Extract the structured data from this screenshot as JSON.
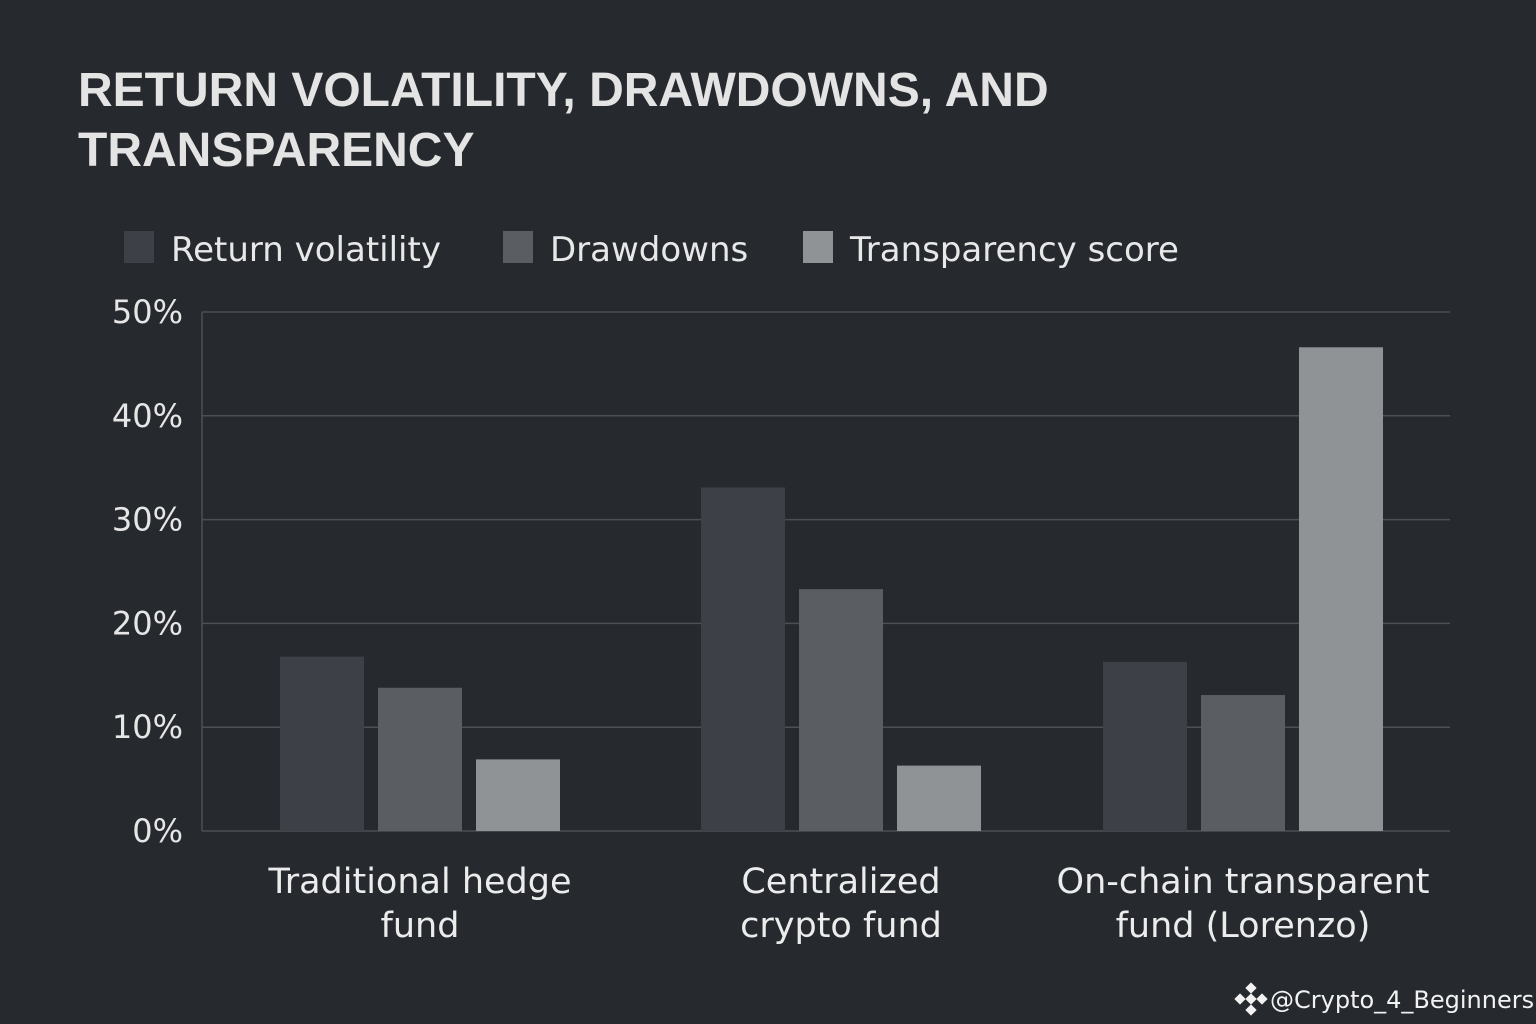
{
  "chart_data": {
    "type": "bar",
    "title": "RETURN VOLATILITY, DRAWDOWNS, AND TRANSPARENCY",
    "title_lines": [
      "RETURN VOLATILITY, DRAWDOWNS, AND",
      "TRANSPARENCY"
    ],
    "xlabel": "",
    "ylabel": "",
    "ylim": [
      0,
      50
    ],
    "yticks": [
      0,
      10,
      20,
      30,
      40,
      50
    ],
    "ytick_labels": [
      "0%",
      "10%",
      "20%",
      "30%",
      "40%",
      "50%"
    ],
    "grid": true,
    "legend_position": "top-left",
    "categories": [
      [
        "Traditional hedge",
        "fund"
      ],
      [
        "Centralized",
        "crypto fund"
      ],
      [
        "On-chain transparent",
        "fund (Lorenzo)"
      ]
    ],
    "series": [
      {
        "name": "Return volatility",
        "color": "#3d4047",
        "values": [
          16.8,
          33.1,
          16.3
        ]
      },
      {
        "name": "Drawdowns",
        "color": "#5a5e63",
        "values": [
          13.8,
          23.3,
          13.1
        ]
      },
      {
        "name": "Transparency score",
        "color": "#909396",
        "values": [
          6.9,
          6.3,
          46.6
        ]
      }
    ]
  },
  "watermark": {
    "text": "@Crypto_4_Beginners",
    "icon": "binance-diamond-icon"
  },
  "colors": {
    "background": "#262a2f",
    "grid": "#4b5055",
    "text": "#e8e8e8"
  }
}
